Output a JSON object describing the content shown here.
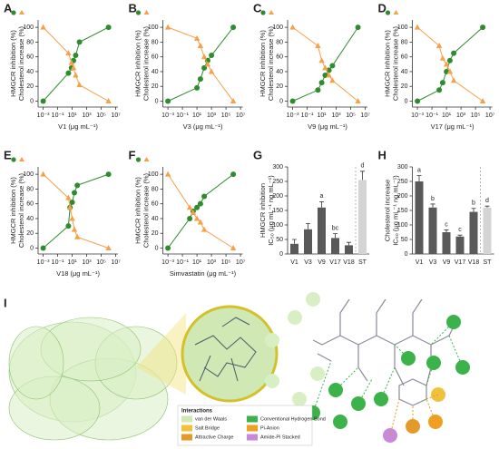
{
  "chart_data": [
    {
      "type": "line",
      "label": "A",
      "xlabel": "V1 (μg mL⁻¹)",
      "ylabels": [
        "HMGCR inhibition (%)",
        "Cholesterol increase (%)"
      ],
      "log_x": true,
      "x": [
        0.001,
        3,
        8,
        15,
        30,
        100,
        1000000
      ],
      "series": [
        {
          "name": "HMGCR inhibition",
          "color": "#2e8b2e",
          "marker": "circle",
          "values": [
            0,
            38,
            45,
            55,
            62,
            80,
            100
          ]
        },
        {
          "name": "Cholesterol increase",
          "color": "#f5a04a",
          "marker": "triangle",
          "values": [
            100,
            65,
            52,
            45,
            35,
            22,
            0
          ]
        }
      ],
      "xlim": [
        0.0002,
        20000000
      ],
      "xticks": [
        {
          "value": 0.001,
          "label": "10⁻³"
        },
        {
          "value": 0.1,
          "label": "10⁻¹"
        },
        {
          "value": 10,
          "label": "10¹"
        },
        {
          "value": 1000,
          "label": "10³"
        },
        {
          "value": 100000,
          "label": "10⁵"
        },
        {
          "value": 10000000,
          "label": "10⁷"
        }
      ],
      "ylim": [
        -8,
        110
      ],
      "yticks": [
        0,
        20,
        40,
        60,
        80,
        100
      ]
    },
    {
      "type": "line",
      "label": "B",
      "xlabel": "V3 (μg mL⁻¹)",
      "ylabels": [
        "HMGCR inhibition (%)",
        "Cholesterol increase (%)"
      ],
      "log_x": true,
      "x": [
        0.001,
        10,
        30,
        100,
        300,
        1000,
        1000000
      ],
      "series": [
        {
          "name": "HMGCR inhibition",
          "color": "#2e8b2e",
          "marker": "circle",
          "values": [
            0,
            18,
            30,
            45,
            55,
            62,
            100
          ]
        },
        {
          "name": "Cholesterol increase",
          "color": "#f5a04a",
          "marker": "triangle",
          "values": [
            100,
            85,
            75,
            60,
            50,
            40,
            0
          ]
        }
      ],
      "xlim": [
        0.0002,
        20000000
      ],
      "xticks": [
        {
          "value": 0.001,
          "label": "10⁻³"
        },
        {
          "value": 0.1,
          "label": "10⁻¹"
        },
        {
          "value": 10,
          "label": "10¹"
        },
        {
          "value": 1000,
          "label": "10³"
        },
        {
          "value": 100000,
          "label": "10⁵"
        },
        {
          "value": 10000000,
          "label": "10⁷"
        }
      ],
      "ylim": [
        -8,
        110
      ],
      "yticks": [
        0,
        20,
        40,
        60,
        80,
        100
      ]
    },
    {
      "type": "line",
      "label": "C",
      "xlabel": "V9 (μg mL⁻¹)",
      "ylabels": [
        "HMGCR inhibition (%)",
        "Cholesterol increase (%)"
      ],
      "log_x": true,
      "x": [
        0.001,
        3,
        10,
        30,
        100,
        300,
        1000000
      ],
      "series": [
        {
          "name": "HMGCR inhibition",
          "color": "#2e8b2e",
          "marker": "circle",
          "values": [
            0,
            15,
            25,
            35,
            42,
            48,
            100
          ]
        },
        {
          "name": "Cholesterol increase",
          "color": "#f5a04a",
          "marker": "triangle",
          "values": [
            100,
            75,
            55,
            45,
            35,
            28,
            0
          ]
        }
      ],
      "xlim": [
        0.0002,
        20000000
      ],
      "xticks": [
        {
          "value": 0.001,
          "label": "10⁻³"
        },
        {
          "value": 0.1,
          "label": "10⁻¹"
        },
        {
          "value": 10,
          "label": "10¹"
        },
        {
          "value": 1000,
          "label": "10³"
        },
        {
          "value": 100000,
          "label": "10⁵"
        },
        {
          "value": 10000000,
          "label": "10⁷"
        }
      ],
      "ylim": [
        -8,
        110
      ],
      "yticks": [
        0,
        20,
        40,
        60,
        80,
        100
      ]
    },
    {
      "type": "line",
      "label": "D",
      "xlabel": "V17 (μg mL⁻¹)",
      "ylabels": [
        "HMGCR inhibition (%)",
        "Cholesterol increase (%)"
      ],
      "log_x": true,
      "x": [
        0.001,
        1,
        3,
        10,
        30,
        100,
        1000000
      ],
      "series": [
        {
          "name": "HMGCR inhibition",
          "color": "#2e8b2e",
          "marker": "circle",
          "values": [
            0,
            15,
            25,
            40,
            55,
            65,
            100
          ]
        },
        {
          "name": "Cholesterol increase",
          "color": "#f5a04a",
          "marker": "triangle",
          "values": [
            100,
            75,
            58,
            50,
            40,
            28,
            0
          ]
        }
      ],
      "xlim": [
        0.0002,
        20000000
      ],
      "xticks": [
        {
          "value": 0.001,
          "label": "10⁻³"
        },
        {
          "value": 0.1,
          "label": "10⁻¹"
        },
        {
          "value": 10,
          "label": "10¹"
        },
        {
          "value": 1000,
          "label": "10³"
        },
        {
          "value": 100000,
          "label": "10⁵"
        },
        {
          "value": 10000000,
          "label": "10⁷"
        }
      ],
      "ylim": [
        -8,
        110
      ],
      "yticks": [
        0,
        20,
        40,
        60,
        80,
        100
      ]
    },
    {
      "type": "line",
      "label": "E",
      "xlabel": "V18 (μg mL⁻¹)",
      "ylabels": [
        "HMGCR inhibition (%)",
        "Cholesterol increase (%)"
      ],
      "log_x": true,
      "x": [
        0.001,
        3,
        5,
        10,
        20,
        50,
        1000000
      ],
      "series": [
        {
          "name": "HMGCR inhibition",
          "color": "#2e8b2e",
          "marker": "circle",
          "values": [
            0,
            30,
            55,
            62,
            75,
            85,
            100
          ]
        },
        {
          "name": "Cholesterol increase",
          "color": "#f5a04a",
          "marker": "triangle",
          "values": [
            100,
            68,
            55,
            40,
            25,
            15,
            0
          ]
        }
      ],
      "xlim": [
        0.0002,
        20000000
      ],
      "xticks": [
        {
          "value": 0.001,
          "label": "10⁻³"
        },
        {
          "value": 0.1,
          "label": "10⁻¹"
        },
        {
          "value": 10,
          "label": "10¹"
        },
        {
          "value": 1000,
          "label": "10³"
        },
        {
          "value": 100000,
          "label": "10⁵"
        },
        {
          "value": 10000000,
          "label": "10⁷"
        }
      ],
      "ylim": [
        -8,
        110
      ],
      "yticks": [
        0,
        20,
        40,
        60,
        80,
        100
      ]
    },
    {
      "type": "line",
      "label": "F",
      "xlabel": "Simvastatin (μg mL⁻¹)",
      "ylabels": [
        "HMGCR inhibition (%)",
        "Cholesterol increase (%)"
      ],
      "log_x": true,
      "x": [
        0.001,
        1,
        3,
        10,
        30,
        100,
        1000000
      ],
      "series": [
        {
          "name": "HMGCR inhibition",
          "color": "#2e8b2e",
          "marker": "circle",
          "values": [
            0,
            40,
            50,
            55,
            60,
            70,
            100
          ]
        },
        {
          "name": "Cholesterol increase",
          "color": "#f5a04a",
          "marker": "triangle",
          "values": [
            100,
            55,
            48,
            40,
            35,
            25,
            0
          ]
        }
      ],
      "xlim": [
        0.0002,
        20000000
      ],
      "xticks": [
        {
          "value": 0.001,
          "label": "10⁻³"
        },
        {
          "value": 0.1,
          "label": "10⁻¹"
        },
        {
          "value": 10,
          "label": "10¹"
        },
        {
          "value": 1000,
          "label": "10³"
        },
        {
          "value": 100000,
          "label": "10⁵"
        },
        {
          "value": 10000000,
          "label": "10⁷"
        }
      ],
      "ylim": [
        -8,
        110
      ],
      "yticks": [
        0,
        20,
        40,
        60,
        80,
        100
      ]
    },
    {
      "type": "bar",
      "label": "G",
      "ylabels": [
        "HMGCR inhibition",
        "IC₅₀ (μg mL⁻¹ ng mL⁻¹)"
      ],
      "categories": [
        "V1",
        "V3",
        "V9",
        "V17",
        "V18",
        "ST"
      ],
      "values": [
        35,
        85,
        160,
        55,
        30,
        255
      ],
      "errors": [
        15,
        20,
        20,
        15,
        10,
        30
      ],
      "colors": [
        "#595959",
        "#595959",
        "#595959",
        "#595959",
        "#595959",
        "#d4d4d4"
      ],
      "letters": [
        null,
        null,
        "a",
        "bc",
        null,
        "d"
      ],
      "ylim": [
        0,
        300
      ],
      "yticks": [
        0,
        50,
        100,
        150,
        200,
        250,
        300
      ]
    },
    {
      "type": "bar",
      "label": "H",
      "ylabels": [
        "Cholesterol increase",
        "IC₅₀ (μg mL⁻¹ ng mL⁻¹)"
      ],
      "categories": [
        "V1",
        "V3",
        "V9",
        "V17",
        "V18",
        "ST"
      ],
      "values": [
        250,
        160,
        75,
        60,
        145,
        160
      ],
      "errors": [
        20,
        12,
        8,
        5,
        12,
        5
      ],
      "colors": [
        "#595959",
        "#595959",
        "#595959",
        "#595959",
        "#595959",
        "#d4d4d4"
      ],
      "letters": [
        "a",
        "b",
        "c",
        "c",
        "b",
        "d"
      ],
      "ylim": [
        0,
        300
      ],
      "yticks": [
        0,
        50,
        100,
        150,
        200,
        250,
        300
      ]
    }
  ],
  "panel_i": {
    "label": "I",
    "legend_title": "Interactions",
    "legend": [
      {
        "name": "van der Waals",
        "color": "#cfe8b4"
      },
      {
        "name": "Conventional Hydrogen Bond",
        "color": "#3cb34a"
      },
      {
        "name": "Salt Bridge",
        "color": "#f0c23c"
      },
      {
        "name": "Pi-Anion",
        "color": "#f0a020"
      },
      {
        "name": "Attractive Charge",
        "color": "#e39a2a"
      },
      {
        "name": "Amide-Pi Stacked",
        "color": "#c78ad8"
      }
    ]
  }
}
